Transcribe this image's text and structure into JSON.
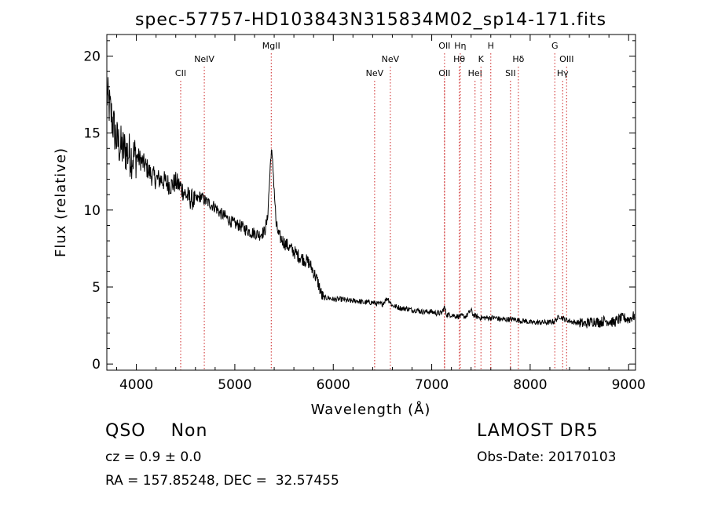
{
  "chart_data": {
    "type": "line",
    "title": "spec-57757-HD103843N315834M02_sp14-171.fits",
    "xlabel": "Wavelength (Å)",
    "ylabel": "Flux (relative)",
    "xlim": [
      3700,
      9070
    ],
    "ylim": [
      -0.4,
      21.4
    ],
    "xticks": [
      4000,
      5000,
      6000,
      7000,
      8000,
      9000
    ],
    "yticks": [
      0,
      5,
      10,
      15,
      20
    ],
    "grid": false,
    "spectrum": {
      "x": [
        3700,
        3750,
        3800,
        3850,
        3900,
        3950,
        4000,
        4050,
        4100,
        4150,
        4200,
        4250,
        4300,
        4350,
        4400,
        4450,
        4500,
        4550,
        4600,
        4650,
        4700,
        4750,
        4800,
        4850,
        4900,
        4950,
        5000,
        5050,
        5100,
        5150,
        5200,
        5250,
        5300,
        5330,
        5350,
        5370,
        5390,
        5420,
        5450,
        5500,
        5550,
        5600,
        5650,
        5700,
        5750,
        5800,
        5850,
        5880,
        5900,
        5950,
        6000,
        6050,
        6100,
        6150,
        6200,
        6250,
        6300,
        6350,
        6400,
        6450,
        6500,
        6550,
        6570,
        6600,
        6650,
        6700,
        6750,
        6800,
        6850,
        6900,
        6950,
        7000,
        7050,
        7100,
        7130,
        7150,
        7200,
        7250,
        7300,
        7350,
        7400,
        7420,
        7450,
        7500,
        7550,
        7600,
        7650,
        7700,
        7750,
        7800,
        7850,
        7900,
        7950,
        8000,
        8050,
        8100,
        8150,
        8200,
        8250,
        8300,
        8350,
        8400,
        8450,
        8500,
        8550,
        8600,
        8650,
        8700,
        8750,
        8800,
        8850,
        8900,
        8950,
        9000,
        9050
      ],
      "y": [
        17.5,
        16.0,
        14.5,
        14.0,
        13.8,
        13.5,
        13.5,
        13.2,
        12.8,
        12.3,
        12.0,
        12.0,
        11.8,
        11.6,
        11.8,
        11.5,
        11.0,
        10.7,
        10.6,
        10.9,
        10.6,
        10.4,
        10.2,
        9.8,
        9.6,
        9.3,
        9.1,
        9.0,
        8.8,
        8.6,
        8.5,
        8.4,
        8.6,
        9.3,
        11.5,
        14.0,
        12.5,
        9.0,
        8.3,
        7.9,
        7.6,
        7.3,
        7.0,
        6.8,
        6.6,
        6.0,
        5.2,
        4.5,
        4.3,
        4.3,
        4.2,
        4.2,
        4.2,
        4.1,
        4.1,
        4.1,
        4.0,
        4.0,
        4.0,
        3.9,
        3.9,
        4.3,
        4.1,
        3.8,
        3.7,
        3.6,
        3.6,
        3.5,
        3.5,
        3.4,
        3.4,
        3.4,
        3.3,
        3.3,
        3.7,
        3.2,
        3.2,
        3.1,
        3.1,
        3.1,
        3.5,
        3.2,
        3.1,
        3.0,
        3.0,
        3.0,
        3.0,
        2.9,
        2.9,
        2.9,
        2.9,
        2.8,
        2.8,
        2.7,
        2.7,
        2.7,
        2.7,
        2.7,
        2.8,
        3.1,
        2.9,
        2.8,
        2.7,
        2.7,
        2.6,
        2.7,
        2.8,
        2.7,
        2.8,
        2.8,
        2.7,
        2.9,
        3.0,
        2.9,
        3.1
      ]
    },
    "lines": [
      {
        "label": "CII",
        "x": 4450,
        "row": 3
      },
      {
        "label": "NeIV",
        "x": 4690,
        "row": 2
      },
      {
        "label": "MgII",
        "x": 5370,
        "row": 1
      },
      {
        "label": "NeV",
        "x": 6420,
        "row": 3
      },
      {
        "label": "NeV",
        "x": 6580,
        "row": 2
      },
      {
        "label": "OII",
        "x": 7130,
        "row": 1
      },
      {
        "label": "OII",
        "x": 7130,
        "row": 3
      },
      {
        "label": "Hη",
        "x": 7290,
        "row": 1
      },
      {
        "label": "Hθ",
        "x": 7280,
        "row": 2
      },
      {
        "label": "HeI",
        "x": 7440,
        "row": 3
      },
      {
        "label": "K",
        "x": 7500,
        "row": 2
      },
      {
        "label": "H",
        "x": 7600,
        "row": 1
      },
      {
        "label": "Hδ",
        "x": 7880,
        "row": 2
      },
      {
        "label": "SII",
        "x": 7800,
        "row": 3
      },
      {
        "label": "G",
        "x": 8250,
        "row": 1
      },
      {
        "label": "OIII",
        "x": 8370,
        "row": 2
      },
      {
        "label": "Hγ",
        "x": 8330,
        "row": 3
      }
    ],
    "line_color": "#cc2222",
    "spectrum_color": "#000000"
  },
  "info": {
    "class": "QSO    Non",
    "survey": "LAMOST DR5",
    "cz": "cz = 0.9 ± 0.0",
    "obs_date": "Obs-Date: 20170103",
    "radec": "RA = 157.85248, DEC =  32.57455"
  }
}
